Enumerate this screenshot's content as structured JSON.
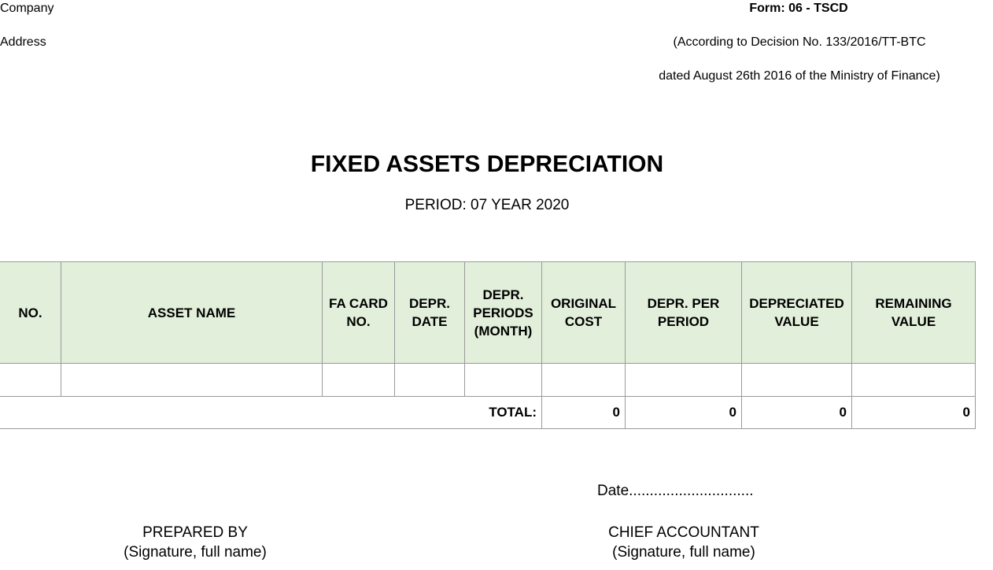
{
  "header": {
    "company_label": "Company",
    "address_label": "Address",
    "form_code": "Form: 06 - TSCD",
    "decision_line": "(According to Decision No. 133/2016/TT-BTC",
    "dated_line": "dated August 26th 2016 of the Ministry of Finance)"
  },
  "report": {
    "title": "FIXED ASSETS DEPRECIATION",
    "period": "PERIOD: 07 YEAR 2020"
  },
  "table": {
    "columns": [
      "NO.",
      "ASSET NAME",
      "FA CARD NO.",
      "DEPR. DATE",
      "DEPR. PERIODS (MONTH)",
      "ORIGINAL COST",
      "DEPR. PER PERIOD",
      "DEPRECIATED VALUE",
      "REMAINING VALUE"
    ],
    "rows": [
      [
        "",
        "",
        "",
        "",
        "",
        "",
        "",
        "",
        ""
      ]
    ],
    "total": {
      "label": "TOTAL:",
      "original_cost": "0",
      "depr_per_period": "0",
      "depreciated_value": "0",
      "remaining_value": "0"
    }
  },
  "footer": {
    "date_line": "Date..............................",
    "prepared_by": "PREPARED BY",
    "prepared_by_note": "(Signature, full name)",
    "chief_accountant": "CHIEF ACCOUNTANT",
    "chief_accountant_note": "(Signature, full name)"
  }
}
